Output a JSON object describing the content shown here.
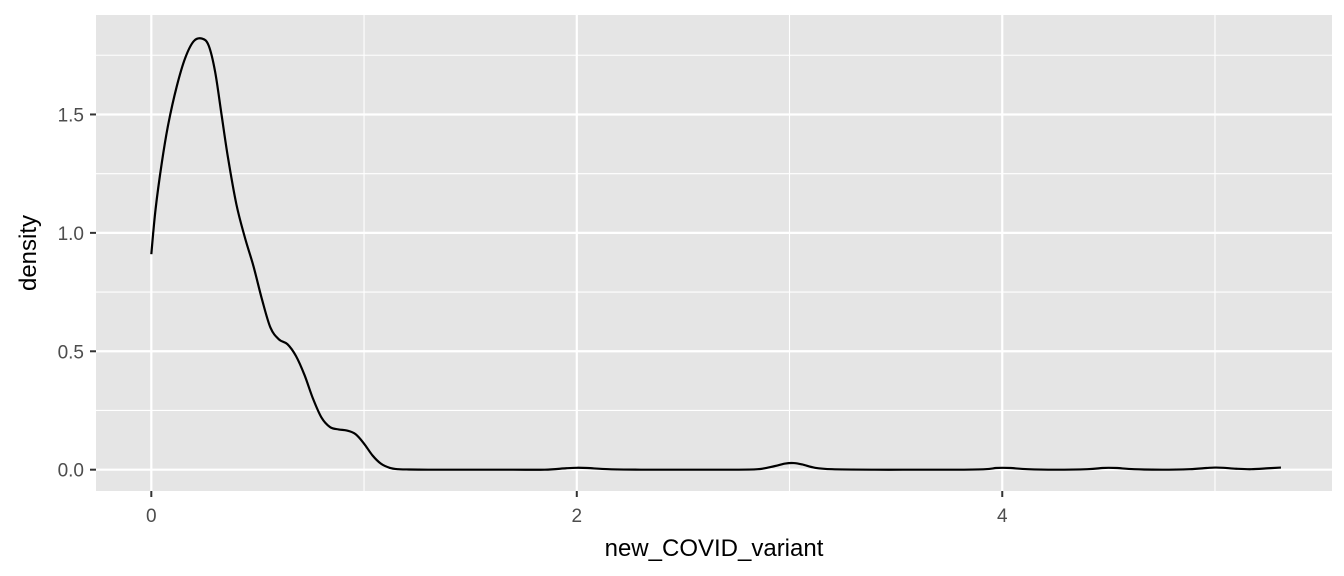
{
  "chart_data": {
    "type": "area",
    "geom": "density",
    "title": "",
    "xlabel": "new_COVID_variant",
    "ylabel": "density",
    "xlim": [
      -0.26,
      5.55
    ],
    "ylim": [
      -0.09,
      1.92
    ],
    "x_ticks": [
      0,
      2,
      4
    ],
    "x_tick_labels": [
      "0",
      "2",
      "4"
    ],
    "x_minor_ticks": [
      1,
      3,
      5
    ],
    "y_ticks": [
      0,
      0.5,
      1,
      1.5
    ],
    "y_tick_labels": [
      "0.0",
      "0.5",
      "1.0",
      "1.5"
    ],
    "y_minor_ticks": [
      0.25,
      0.75,
      1.25,
      1.75
    ],
    "grid": true,
    "legend": "none",
    "colors": {
      "panel": "#e5e5e5",
      "grid": "#ffffff",
      "line": "#000000",
      "tick": "#333333",
      "tick_label": "#4d4d4d"
    },
    "series": [
      {
        "x": [
          0,
          0.02,
          0.05,
          0.08,
          0.12,
          0.16,
          0.2,
          0.24,
          0.27,
          0.3,
          0.33,
          0.36,
          0.4,
          0.44,
          0.48,
          0.52,
          0.56,
          0.6,
          0.64,
          0.68,
          0.72,
          0.76,
          0.8,
          0.84,
          0.88,
          0.92,
          0.96,
          1.0,
          1.04,
          1.08,
          1.12,
          1.16,
          1.2,
          1.3,
          1.5,
          1.7,
          1.85,
          1.95,
          2.0,
          2.05,
          2.15,
          2.3,
          2.5,
          2.7,
          2.85,
          2.93,
          2.98,
          3.02,
          3.06,
          3.12,
          3.2,
          3.4,
          3.6,
          3.8,
          3.92,
          3.97,
          4.0,
          4.04,
          4.12,
          4.25,
          4.4,
          4.47,
          4.5,
          4.54,
          4.62,
          4.75,
          4.88,
          4.96,
          5.0,
          5.04,
          5.1,
          5.17,
          5.25,
          5.31
        ],
        "y": [
          0.91,
          1.1,
          1.3,
          1.46,
          1.62,
          1.74,
          1.81,
          1.82,
          1.79,
          1.68,
          1.5,
          1.32,
          1.12,
          0.98,
          0.86,
          0.72,
          0.6,
          0.55,
          0.53,
          0.48,
          0.4,
          0.3,
          0.22,
          0.18,
          0.17,
          0.165,
          0.15,
          0.11,
          0.06,
          0.025,
          0.008,
          0.002,
          0.001,
          0,
          0,
          0,
          0,
          0.006,
          0.008,
          0.007,
          0.002,
          0,
          0,
          0,
          0.002,
          0.015,
          0.026,
          0.028,
          0.022,
          0.008,
          0.002,
          0,
          0,
          0,
          0.002,
          0.007,
          0.008,
          0.007,
          0.002,
          0,
          0.002,
          0.007,
          0.008,
          0.007,
          0.002,
          0,
          0.002,
          0.007,
          0.009,
          0.008,
          0.004,
          0.002,
          0.006,
          0.009
        ]
      }
    ]
  }
}
